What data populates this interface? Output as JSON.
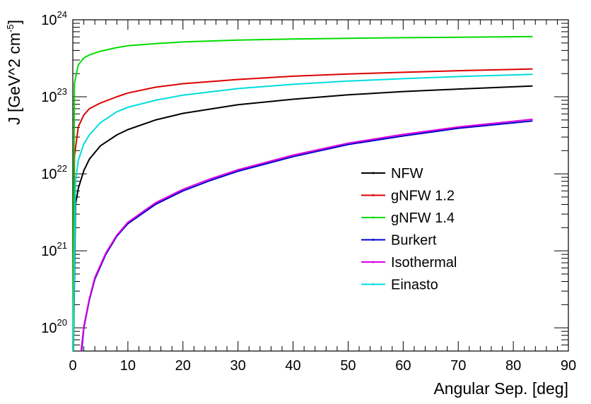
{
  "chart_data": {
    "type": "line",
    "xlabel": "Angular Sep. [deg]",
    "ylabel_base": "J [GeV^2 cm",
    "ylabel_sup": "-5",
    "ylabel_close": "]",
    "y_scale": "log",
    "xlim": [
      0,
      90
    ],
    "ylim": [
      5e+19,
      1e+24
    ],
    "x_ticks": [
      0,
      10,
      20,
      30,
      40,
      50,
      60,
      70,
      80,
      90
    ],
    "y_ticks": [
      {
        "base": "10",
        "exp": "20",
        "value": 1e+20
      },
      {
        "base": "10",
        "exp": "21",
        "value": 1e+21
      },
      {
        "base": "10",
        "exp": "22",
        "value": 1e+22
      },
      {
        "base": "10",
        "exp": "23",
        "value": 1e+23
      },
      {
        "base": "10",
        "exp": "24",
        "value": 1e+24
      }
    ],
    "grid": false,
    "legend_position": "center-right",
    "series": [
      {
        "name": "NFW",
        "color": "#000000",
        "points": [
          [
            0.1,
            5e+19
          ],
          [
            0.5,
            4e+21
          ],
          [
            1,
            6.5e+21
          ],
          [
            2,
            1.1e+22
          ],
          [
            3,
            1.55e+22
          ],
          [
            5,
            2.3e+22
          ],
          [
            8,
            3.2e+22
          ],
          [
            10,
            3.75e+22
          ],
          [
            15,
            5e+22
          ],
          [
            20,
            6.1e+22
          ],
          [
            30,
            7.9e+22
          ],
          [
            40,
            9.3e+22
          ],
          [
            50,
            1.06e+23
          ],
          [
            60,
            1.17e+23
          ],
          [
            70,
            1.26e+23
          ],
          [
            83.5,
            1.38e+23
          ]
        ]
      },
      {
        "name": "gNFW 1.2",
        "color": "#dd0000",
        "points": [
          [
            0.05,
            5e+19
          ],
          [
            0.3,
            1.7e+22
          ],
          [
            1,
            4.1e+22
          ],
          [
            2,
            5.8e+22
          ],
          [
            3,
            7e+22
          ],
          [
            5,
            8.3e+22
          ],
          [
            8,
            1e+23
          ],
          [
            10,
            1.12e+23
          ],
          [
            15,
            1.33e+23
          ],
          [
            20,
            1.48e+23
          ],
          [
            30,
            1.68e+23
          ],
          [
            40,
            1.85e+23
          ],
          [
            50,
            1.98e+23
          ],
          [
            60,
            2.08e+23
          ],
          [
            70,
            2.18e+23
          ],
          [
            83.5,
            2.3e+23
          ]
        ]
      },
      {
        "name": "gNFW 1.4",
        "color": "#00dd00",
        "points": [
          [
            0.02,
            5e+19
          ],
          [
            0.3,
            1.5e+23
          ],
          [
            1,
            2.6e+23
          ],
          [
            2,
            3.2e+23
          ],
          [
            3,
            3.5e+23
          ],
          [
            5,
            3.9e+23
          ],
          [
            8,
            4.35e+23
          ],
          [
            10,
            4.6e+23
          ],
          [
            15,
            4.9e+23
          ],
          [
            20,
            5.15e+23
          ],
          [
            30,
            5.45e+23
          ],
          [
            40,
            5.62e+23
          ],
          [
            50,
            5.75e+23
          ],
          [
            60,
            5.85e+23
          ],
          [
            70,
            5.92e+23
          ],
          [
            83.5,
            6.05e+23
          ]
        ]
      },
      {
        "name": "Burkert",
        "color": "#0000cc",
        "points": [
          [
            1.6,
            5e+19
          ],
          [
            2,
            1e+20
          ],
          [
            3,
            2.3e+20
          ],
          [
            4,
            4.3e+20
          ],
          [
            6,
            9e+20
          ],
          [
            8,
            1.55e+21
          ],
          [
            10,
            2.25e+21
          ],
          [
            15,
            4e+21
          ],
          [
            20,
            6e+21
          ],
          [
            25,
            8.2e+21
          ],
          [
            30,
            1.08e+22
          ],
          [
            40,
            1.67e+22
          ],
          [
            50,
            2.4e+22
          ],
          [
            60,
            3.1e+22
          ],
          [
            70,
            3.9e+22
          ],
          [
            83.5,
            4.85e+22
          ]
        ]
      },
      {
        "name": "Isothermal",
        "color": "#dd00dd",
        "points": [
          [
            1.5,
            5e+19
          ],
          [
            2,
            1.05e+20
          ],
          [
            3,
            2.4e+20
          ],
          [
            4,
            4.5e+20
          ],
          [
            6,
            9.4e+20
          ],
          [
            8,
            1.6e+21
          ],
          [
            10,
            2.35e+21
          ],
          [
            15,
            4.2e+21
          ],
          [
            20,
            6.3e+21
          ],
          [
            25,
            8.6e+21
          ],
          [
            30,
            1.13e+22
          ],
          [
            40,
            1.75e+22
          ],
          [
            50,
            2.5e+22
          ],
          [
            60,
            3.25e+22
          ],
          [
            70,
            4.05e+22
          ],
          [
            83.5,
            5.1e+22
          ]
        ]
      },
      {
        "name": "Einasto",
        "color": "#00dddd",
        "points": [
          [
            0.08,
            5e+19
          ],
          [
            0.5,
            8e+21
          ],
          [
            1,
            1.5e+22
          ],
          [
            2,
            2.45e+22
          ],
          [
            3,
            3.2e+22
          ],
          [
            5,
            4.6e+22
          ],
          [
            8,
            6.4e+22
          ],
          [
            10,
            7.3e+22
          ],
          [
            15,
            9e+22
          ],
          [
            20,
            1.05e+23
          ],
          [
            30,
            1.28e+23
          ],
          [
            40,
            1.45e+23
          ],
          [
            50,
            1.6e+23
          ],
          [
            60,
            1.72e+23
          ],
          [
            70,
            1.83e+23
          ],
          [
            83.5,
            1.96e+23
          ]
        ]
      }
    ]
  }
}
